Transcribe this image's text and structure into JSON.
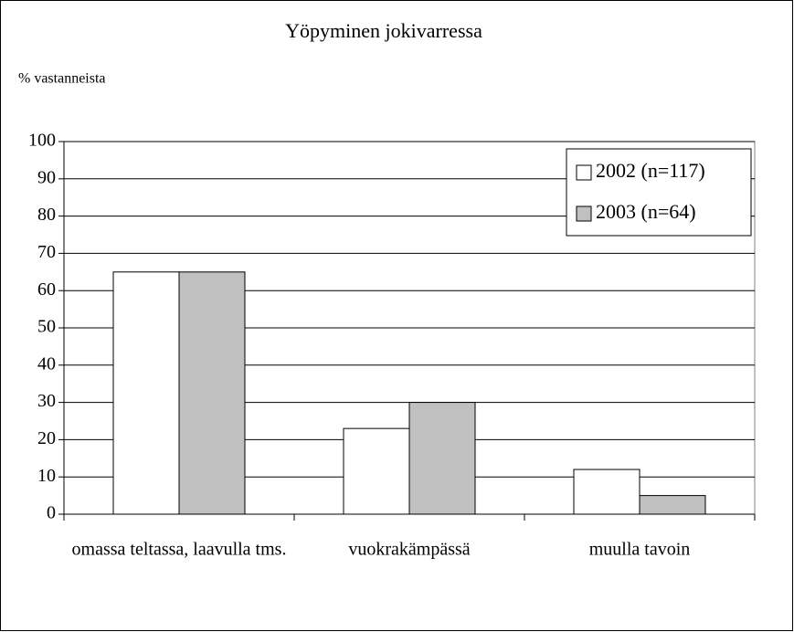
{
  "chart_data": {
    "type": "bar",
    "title": "Yöpyminen jokivarressa",
    "y_label": "% vastanneista",
    "categories": [
      "omassa teltassa, laavulla tms.",
      "vuokrakämpässä",
      "muulla tavoin"
    ],
    "series": [
      {
        "name": "2002 (n=117)",
        "color": "#ffffff",
        "values": [
          65,
          23,
          12
        ]
      },
      {
        "name": "2003 (n=64)",
        "color": "#c0c0c0",
        "values": [
          65,
          30,
          5
        ]
      }
    ],
    "ylim": [
      0,
      100
    ],
    "yticks": [
      0,
      10,
      20,
      30,
      40,
      50,
      60,
      70,
      80,
      90,
      100
    ],
    "grid": true,
    "legend": "upper right"
  }
}
